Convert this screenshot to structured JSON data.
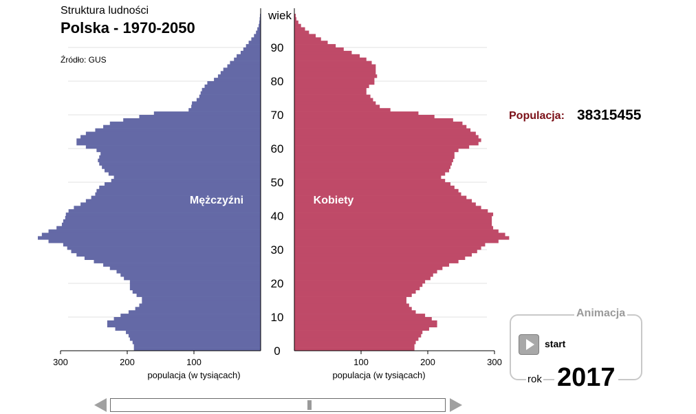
{
  "header": {
    "subtitle": "Struktura ludności",
    "title": "Polska - 1970-2050",
    "source": "Źródło: GUS"
  },
  "population": {
    "label": "Populacja:",
    "value": "38315455"
  },
  "animation": {
    "title": "Animacja",
    "start_label": "start",
    "year_label": "rok",
    "year": "2017"
  },
  "colors": {
    "male": "#6469a6",
    "female": "#bf4a68",
    "population_label": "#7a0e16"
  },
  "chart_data": {
    "type": "bar",
    "orientation": "horizontal",
    "subtype": "population-pyramid",
    "y_axis_label": "wiek",
    "x_axis_label": "populacja (w tysiącach)",
    "y_ticks": [
      0,
      10,
      20,
      30,
      40,
      50,
      60,
      70,
      80,
      90
    ],
    "x_ticks": [
      100,
      200,
      300
    ],
    "xlim": [
      0,
      300
    ],
    "ylim": [
      0,
      100
    ],
    "series": [
      {
        "name": "Mężczyźni",
        "values": [
          190,
          190,
          192,
          196,
          198,
          202,
          218,
          230,
          230,
          220,
          210,
          198,
          188,
          182,
          178,
          178,
          186,
          192,
          196,
          196,
          196,
          205,
          210,
          216,
          226,
          236,
          250,
          264,
          276,
          284,
          290,
          296,
          318,
          334,
          328,
          318,
          306,
          298,
          296,
          293,
          292,
          288,
          280,
          270,
          262,
          254,
          248,
          246,
          242,
          234,
          224,
          220,
          228,
          234,
          238,
          242,
          244,
          242,
          240,
          246,
          262,
          276,
          276,
          270,
          262,
          248,
          236,
          226,
          206,
          182,
          160,
          108,
          104,
          103,
          96,
          92,
          90,
          88,
          84,
          80,
          70,
          64,
          60,
          56,
          50,
          46,
          40,
          36,
          30,
          26,
          22,
          18,
          14,
          10,
          7,
          5,
          3,
          2,
          1.5,
          1
        ]
      },
      {
        "name": "Kobiety",
        "values": [
          180,
          180,
          182,
          186,
          190,
          192,
          202,
          214,
          214,
          206,
          196,
          182,
          176,
          172,
          168,
          168,
          176,
          182,
          188,
          192,
          196,
          204,
          208,
          214,
          222,
          232,
          246,
          256,
          266,
          274,
          280,
          286,
          306,
          322,
          316,
          306,
          298,
          296,
          296,
          296,
          298,
          290,
          280,
          272,
          266,
          258,
          250,
          246,
          240,
          234,
          226,
          220,
          226,
          232,
          234,
          236,
          238,
          240,
          240,
          246,
          262,
          276,
          280,
          276,
          272,
          264,
          258,
          252,
          238,
          210,
          186,
          144,
          128,
          122,
          118,
          114,
          108,
          108,
          112,
          120,
          120,
          124,
          122,
          122,
          122,
          116,
          108,
          98,
          86,
          74,
          62,
          50,
          40,
          32,
          22,
          16,
          10,
          6,
          3,
          2
        ]
      }
    ],
    "series_labels": [
      "Mężczyźni",
      "Kobiety"
    ]
  }
}
